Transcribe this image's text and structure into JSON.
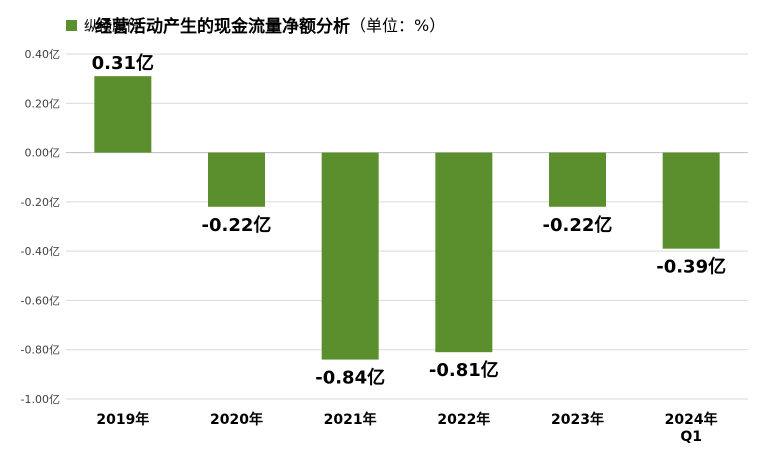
{
  "chart_data": {
    "type": "bar",
    "title": "经营活动产生的现金流量净额分析",
    "subtitle": "（单位：%）",
    "categories": [
      [
        "2019年"
      ],
      [
        "2020年"
      ],
      [
        "2021年"
      ],
      [
        "2022年"
      ],
      [
        "2023年"
      ],
      [
        "2024年",
        "Q1"
      ]
    ],
    "series": [
      {
        "name": "纵横股份",
        "color": "#5b8f2e",
        "values": [
          0.31,
          -0.22,
          -0.84,
          -0.81,
          -0.22,
          -0.39
        ],
        "labels": [
          "0.31亿",
          "-0.22亿",
          "-0.84亿",
          "-0.81亿",
          "-0.22亿",
          "-0.39亿"
        ]
      }
    ],
    "ylim": [
      -1.0,
      0.4
    ],
    "yticks": [
      0.4,
      0.2,
      0.0,
      -0.2,
      -0.4,
      -0.6,
      -0.8,
      -1.0
    ],
    "ytick_labels": [
      "0.40亿",
      "0.20亿",
      "0.00亿",
      "-0.20亿",
      "-0.40亿",
      "-0.60亿",
      "-0.80亿",
      "-1.00亿"
    ],
    "grid": true,
    "legend": "top-left",
    "xlabel": "",
    "ylabel": ""
  }
}
